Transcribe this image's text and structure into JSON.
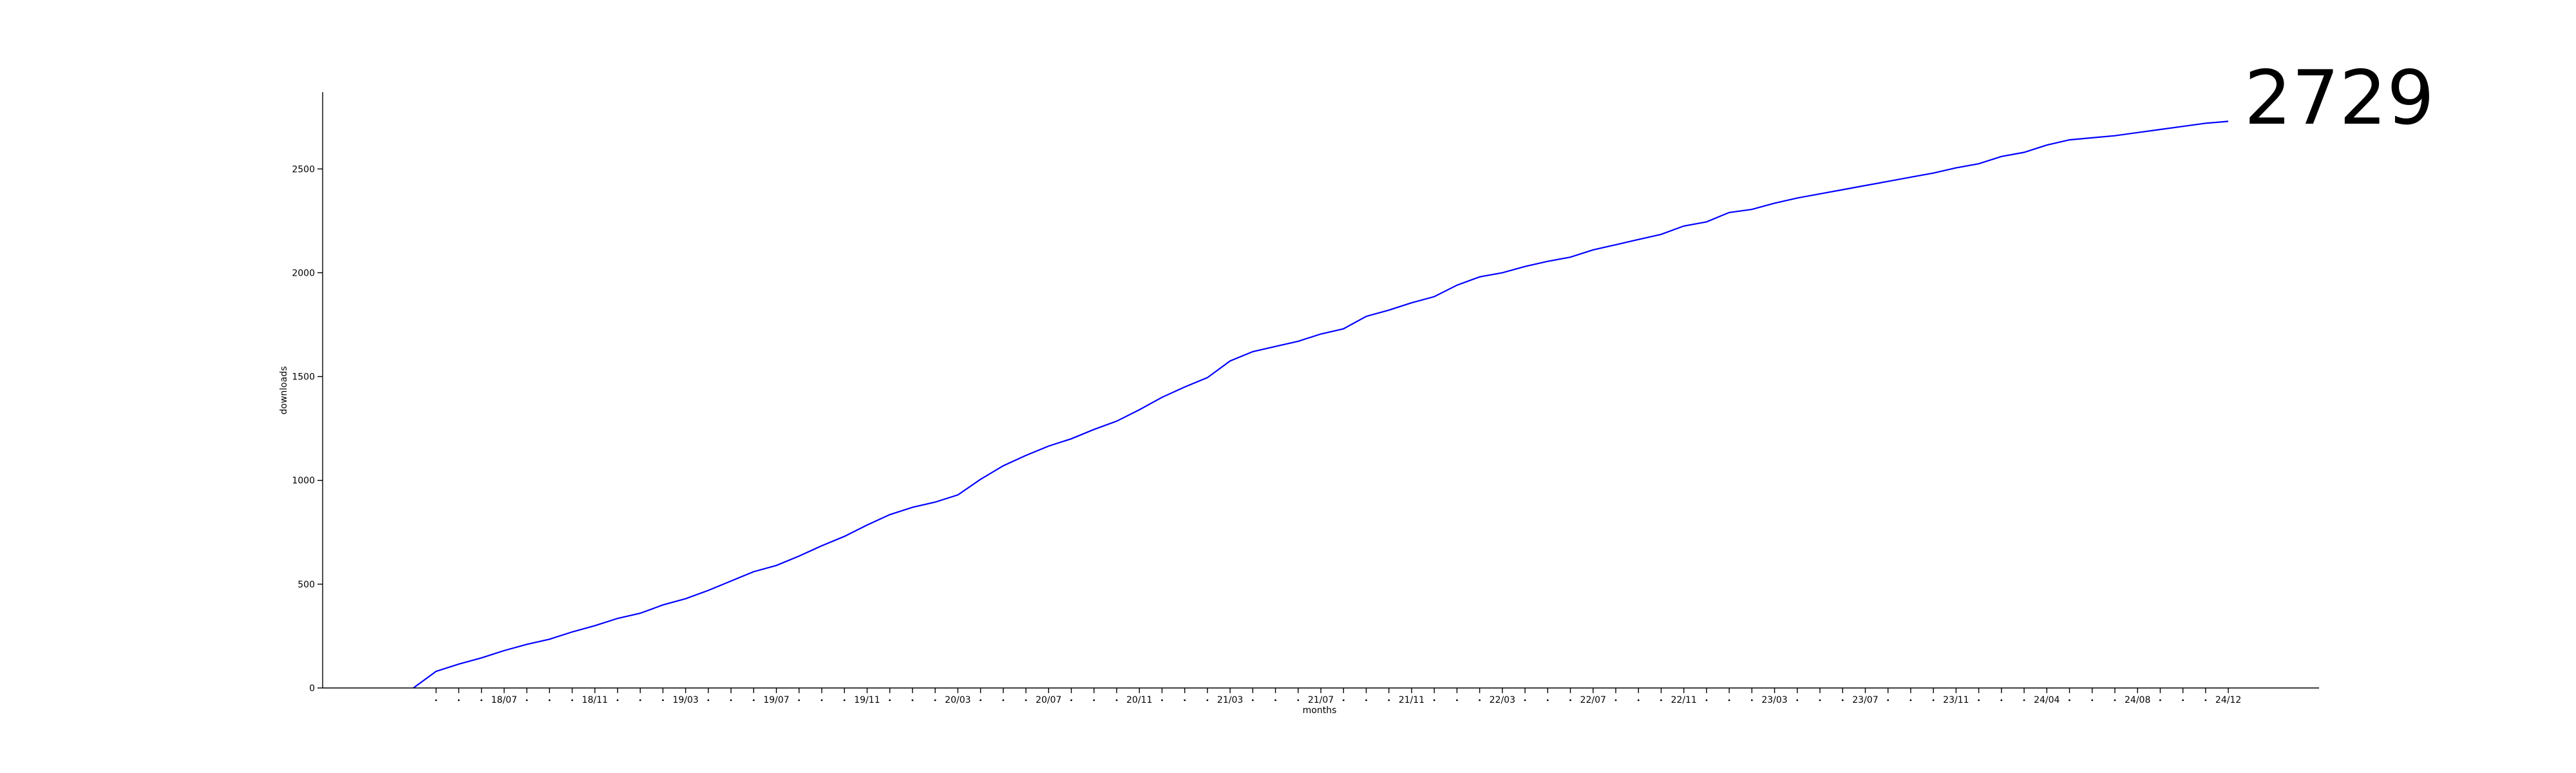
{
  "headline": {
    "value": "2729"
  },
  "chart_data": {
    "type": "line",
    "title": "",
    "xlabel": "months",
    "ylabel": "downloads",
    "ylim": [
      0,
      2870
    ],
    "y_ticks": [
      0,
      500,
      1000,
      1500,
      2000,
      2500
    ],
    "grid": false,
    "legend": "none",
    "x_tick_labels": [
      "18/07",
      "18/11",
      "19/03",
      "19/07",
      "19/11",
      "20/03",
      "20/07",
      "20/11",
      "21/03",
      "21/07",
      "21/11",
      "22/03",
      "22/07",
      "22/11",
      "23/03",
      "23/07",
      "23/11",
      "24/04",
      "24/08",
      "24/12"
    ],
    "x_tick_label_positions": [
      4,
      8,
      12,
      16,
      20,
      24,
      28,
      32,
      36,
      40,
      44,
      48,
      52,
      56,
      60,
      64,
      68,
      72,
      76,
      80
    ],
    "x_minor_ticks": [
      1,
      2,
      3,
      5,
      6,
      7,
      9,
      10,
      11,
      13,
      14,
      15,
      17,
      18,
      19,
      21,
      22,
      23,
      25,
      26,
      27,
      29,
      30,
      31,
      33,
      34,
      35,
      37,
      38,
      39,
      41,
      42,
      43,
      45,
      46,
      47,
      49,
      50,
      51,
      53,
      54,
      55,
      57,
      58,
      59,
      61,
      62,
      63,
      65,
      66,
      67,
      69,
      70,
      71,
      73,
      74,
      75,
      77,
      78,
      79
    ],
    "xlim": [
      -4,
      84
    ],
    "colors": {
      "line": "#0000ff",
      "axis": "#000000"
    },
    "series": [
      {
        "values": [
          0,
          80,
          115,
          145,
          180,
          210,
          235,
          270,
          300,
          335,
          360,
          400,
          430,
          470,
          515,
          560,
          590,
          635,
          685,
          730,
          785,
          835,
          870,
          895,
          930,
          1005,
          1070,
          1120,
          1165,
          1200,
          1245,
          1285,
          1340,
          1400,
          1450,
          1495,
          1575,
          1620,
          1645,
          1670,
          1705,
          1730,
          1790,
          1820,
          1855,
          1885,
          1940,
          1980,
          2000,
          2030,
          2055,
          2075,
          2110,
          2135,
          2160,
          2185,
          2225,
          2245,
          2290,
          2305,
          2335,
          2360,
          2380,
          2400,
          2420,
          2440,
          2460,
          2480,
          2505,
          2525,
          2560,
          2580,
          2615,
          2640,
          2650,
          2660,
          2675,
          2690,
          2705,
          2720,
          2729
        ]
      }
    ]
  }
}
